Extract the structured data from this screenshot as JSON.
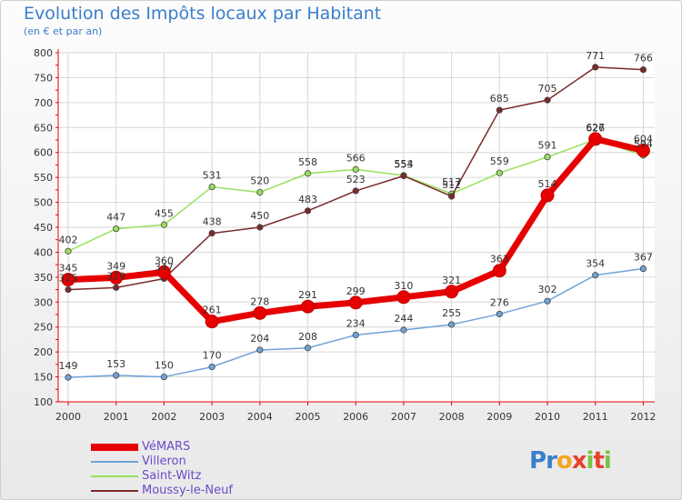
{
  "header": {
    "title": "Evolution des Impôts locaux par Habitant",
    "subtitle": "(en € et par an)"
  },
  "logo": {
    "text": "Proxiti"
  },
  "colors": {
    "vemars": "#e60000",
    "villeron": "#6fa3d8",
    "saint_witz": "#99e05c",
    "moussy": "#7a2b2b",
    "title": "#3a7ecb",
    "legend_text": "#6a4cc9"
  },
  "chart_data": {
    "type": "line",
    "title": "Evolution des Impôts locaux par Habitant",
    "subtitle": "(en € et par an)",
    "xlabel": "",
    "ylabel": "",
    "x": [
      "2000",
      "2001",
      "2002",
      "2003",
      "2004",
      "2005",
      "2006",
      "2007",
      "2008",
      "2009",
      "2010",
      "2011",
      "2012"
    ],
    "ylim": [
      100,
      800
    ],
    "yticks": [
      100,
      150,
      200,
      250,
      300,
      350,
      400,
      450,
      500,
      550,
      600,
      650,
      700,
      750,
      800
    ],
    "grid": true,
    "legend_position": "bottom-left",
    "series": [
      {
        "name": "VéMARS",
        "key": "vemars",
        "values": [
          345,
          349,
          360,
          261,
          278,
          291,
          299,
          310,
          321,
          363,
          514,
          627,
          604
        ],
        "labels": [
          "345",
          "349",
          "360",
          "261",
          "278",
          "291",
          "299",
          "310",
          "321",
          "363",
          "514",
          "627",
          "604"
        ]
      },
      {
        "name": "Villeron",
        "key": "villeron",
        "values": [
          149,
          153,
          150,
          170,
          204,
          208,
          234,
          244,
          255,
          276,
          302,
          354,
          367
        ],
        "labels": [
          "149",
          "153",
          "150",
          "170",
          "204",
          "208",
          "234",
          "244",
          "255",
          "276",
          "302",
          "354",
          "367"
        ]
      },
      {
        "name": "Saint-Witz",
        "key": "saint_witz",
        "values": [
          402,
          447,
          455,
          531,
          520,
          558,
          566,
          554,
          517,
          559,
          591,
          626,
          594
        ],
        "labels": [
          "402",
          "447",
          "455",
          "531",
          "520",
          "558",
          "566",
          "554",
          "517",
          "559",
          "591",
          "626",
          "594"
        ]
      },
      {
        "name": "Moussy-le-Neuf",
        "key": "moussy",
        "values": [
          325,
          329,
          347,
          438,
          450,
          483,
          523,
          553,
          512,
          685,
          705,
          771,
          766
        ],
        "labels": [
          "325",
          "329",
          "347",
          "438",
          "450",
          "483",
          "523",
          "553",
          "512",
          "685",
          "705",
          "771",
          "766"
        ]
      }
    ]
  }
}
